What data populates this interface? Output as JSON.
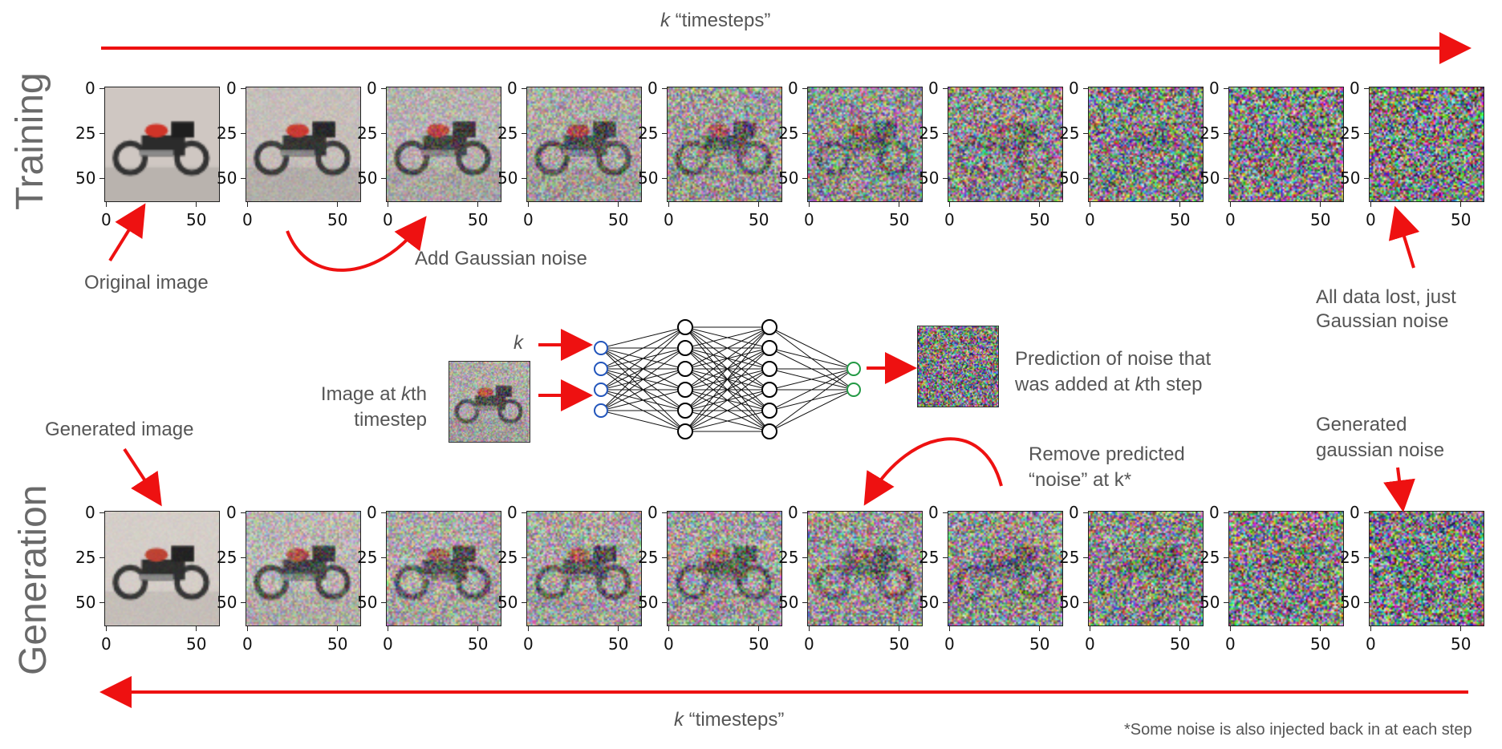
{
  "top_axis_label": {
    "k": "k",
    "rest": " “timesteps”"
  },
  "bottom_axis_label": {
    "k": "k",
    "rest": " “timesteps”"
  },
  "row_titles": {
    "training": "Training",
    "generation": "Generation"
  },
  "annotations": {
    "original_image": "Original image",
    "add_noise": "Add Gaussian noise",
    "all_lost_line1": "All data lost, just",
    "all_lost_line2": "Gaussian noise",
    "generated_image": "Generated image",
    "generated_noise_line1": "Generated",
    "generated_noise_line2": "gaussian noise",
    "remove_line1": "Remove predicted",
    "remove_line2": "“noise” at k*",
    "image_at_line1_pre": "Image at ",
    "image_at_line1_k": "k",
    "image_at_line1_post": "th",
    "image_at_line2": "timestep",
    "k_input": "k",
    "prediction_line1": "Prediction of noise that",
    "prediction_line2_pre": "was added at ",
    "prediction_line2_k": "k",
    "prediction_line2_post": "th step",
    "footnote": "*Some noise is also injected back in at each step"
  },
  "axes": {
    "yticks": [
      "0",
      "25",
      "50"
    ],
    "xticks": [
      "0",
      "50"
    ]
  },
  "training_noise_levels": [
    0.0,
    0.12,
    0.3,
    0.45,
    0.6,
    0.72,
    0.82,
    0.9,
    0.95,
    1.0
  ],
  "generation_noise_levels": [
    0.05,
    0.35,
    0.5,
    0.55,
    0.62,
    0.7,
    0.78,
    0.86,
    0.93,
    1.0
  ],
  "network": {
    "layers": [
      4,
      6,
      6,
      2
    ]
  },
  "colors": {
    "arrow": "#ee1111",
    "input_node": "#2255bb",
    "output_node": "#229944",
    "hidden_node": "#000000"
  }
}
